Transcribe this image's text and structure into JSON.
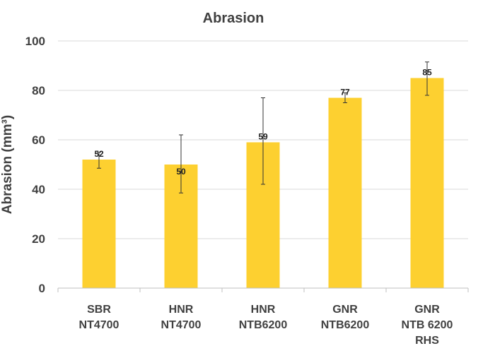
{
  "chart_data": {
    "type": "bar",
    "title": "Abrasion",
    "xlabel": "",
    "ylabel": "Abrasion (mm³)",
    "ylim": [
      0,
      100
    ],
    "yticks": [
      "0",
      "20",
      "40",
      "60",
      "80",
      "100"
    ],
    "categories": [
      [
        "SBR",
        "NT4700"
      ],
      [
        "HNR",
        "NT4700"
      ],
      [
        "HNR",
        "NTB6200"
      ],
      [
        "GNR",
        "NTB6200"
      ],
      [
        "GNR",
        "NTB 6200",
        "RHS"
      ]
    ],
    "values": [
      52,
      50,
      59,
      77,
      85
    ],
    "data_labels": [
      "52",
      "50",
      "59",
      "77",
      "85"
    ],
    "error_low": [
      48.5,
      38.5,
      42,
      75,
      78
    ],
    "error_high": [
      55,
      62,
      77,
      79,
      91.5
    ],
    "grid": true,
    "legend": "none",
    "bar_color": "#fdd030"
  }
}
